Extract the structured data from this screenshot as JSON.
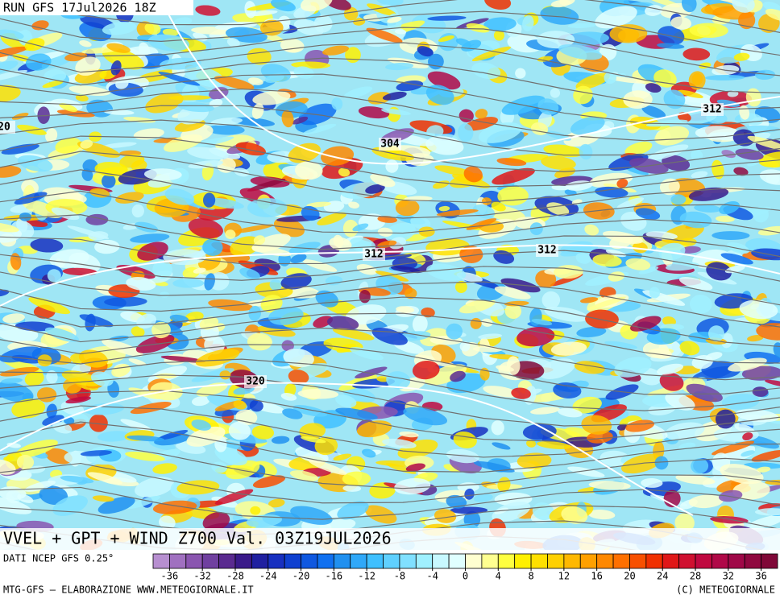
{
  "header": {
    "run": "RUN GFS 17Jul2026 18Z"
  },
  "contour_labels": [
    "20",
    "304",
    "312",
    "312",
    "312",
    "320"
  ],
  "footer": {
    "title": "VVEL + GPT + WIND Z700 Val. 03Z19JUL2026",
    "source": "DATI NCEP GFS 0.25°",
    "credit": "MTG-GFS — ELABORAZIONE WWW.METEOGIORNALE.IT",
    "copyright": "(C) METEOGIORNALE"
  },
  "colorbar": {
    "lim": [
      -38,
      38
    ],
    "ticks": [
      -36,
      -32,
      -28,
      -24,
      -20,
      -16,
      -12,
      -8,
      -4,
      0,
      4,
      8,
      12,
      16,
      20,
      24,
      28,
      32,
      36
    ],
    "colors": [
      "#b78fd0",
      "#a070c0",
      "#8a55b0",
      "#7040a0",
      "#5a2a90",
      "#3a1a8a",
      "#2020a0",
      "#1830c0",
      "#1040d0",
      "#1058e0",
      "#1070f0",
      "#2090f0",
      "#30a8f8",
      "#40c0ff",
      "#60d0ff",
      "#80e0ff",
      "#a0f0ff",
      "#c8f8ff",
      "#e0ffff",
      "#ffffd0",
      "#ffff90",
      "#ffff40",
      "#fff000",
      "#ffe000",
      "#ffd000",
      "#ffb800",
      "#ffa000",
      "#ff8800",
      "#ff7000",
      "#f85000",
      "#f03000",
      "#e01818",
      "#d01030",
      "#c00840",
      "#b00848",
      "#a00848",
      "#900840",
      "#800838"
    ]
  }
}
